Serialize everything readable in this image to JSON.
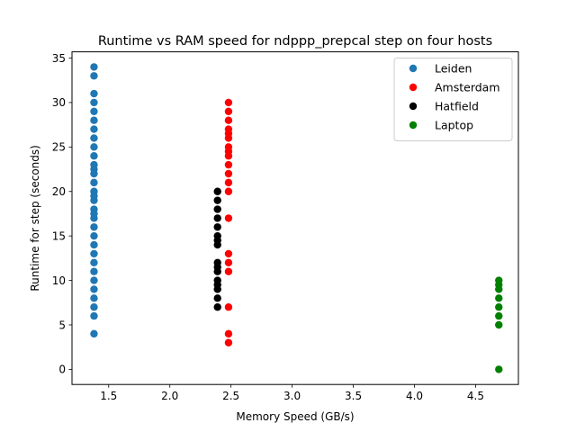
{
  "chart_data": {
    "type": "scatter",
    "title": "Runtime vs RAM speed for ndppp_prepcal step on four hosts",
    "xlabel": "Memory Speed (GB/s)",
    "ylabel": "Runtime for step (seconds)",
    "xlim": [
      1.2,
      4.85
    ],
    "ylim": [
      -1.7,
      35.7
    ],
    "xticks": [
      "1.5",
      "2.0",
      "2.5",
      "3.0",
      "3.5",
      "4.0",
      "4.5"
    ],
    "yticks": [
      "0",
      "5",
      "10",
      "15",
      "20",
      "25",
      "30",
      "35"
    ],
    "legend_position": "upper right",
    "series": [
      {
        "name": "Leiden",
        "color": "#1f77b4",
        "x": [
          1.38,
          1.38,
          1.38,
          1.38,
          1.38,
          1.38,
          1.38,
          1.38,
          1.38,
          1.38,
          1.38,
          1.38,
          1.38,
          1.38,
          1.38,
          1.38,
          1.38,
          1.38,
          1.38,
          1.38,
          1.38,
          1.38,
          1.38,
          1.38,
          1.38,
          1.38,
          1.38,
          1.38,
          1.38,
          1.38,
          1.38,
          1.38
        ],
        "y": [
          4,
          6,
          7,
          8,
          9,
          10,
          11,
          12,
          13,
          14,
          15,
          16,
          17,
          18,
          19,
          20,
          21,
          22,
          23,
          24,
          25,
          26,
          27,
          28,
          29,
          30,
          31,
          33,
          34,
          19.5,
          22.5,
          17.5
        ]
      },
      {
        "name": "Amsterdam",
        "color": "#ff0000",
        "x": [
          2.48,
          2.48,
          2.48,
          2.48,
          2.48,
          2.48,
          2.48,
          2.48,
          2.48,
          2.48,
          2.48,
          2.48,
          2.48,
          2.48,
          2.48,
          2.48,
          2.48,
          2.48,
          2.48,
          2.48
        ],
        "y": [
          3,
          4,
          7,
          11,
          12,
          13,
          17,
          20,
          21,
          22,
          23,
          24,
          25,
          26,
          27,
          28,
          29,
          30,
          24.5,
          26.5
        ]
      },
      {
        "name": "Hatfield",
        "color": "#000000",
        "x": [
          2.39,
          2.39,
          2.39,
          2.39,
          2.39,
          2.39,
          2.39,
          2.39,
          2.39,
          2.39,
          2.39,
          2.39,
          2.39,
          2.39,
          2.39,
          2.39
        ],
        "y": [
          7,
          8,
          9,
          10,
          11,
          12,
          14,
          15,
          16,
          17,
          18,
          19,
          20,
          14.5,
          11.5,
          9.5
        ]
      },
      {
        "name": "Laptop",
        "color": "#008000",
        "x": [
          4.69,
          4.69,
          4.69,
          4.69,
          4.69,
          4.69,
          4.69,
          4.69
        ],
        "y": [
          0,
          5,
          6,
          7,
          8,
          9,
          10,
          9.5
        ]
      }
    ]
  }
}
